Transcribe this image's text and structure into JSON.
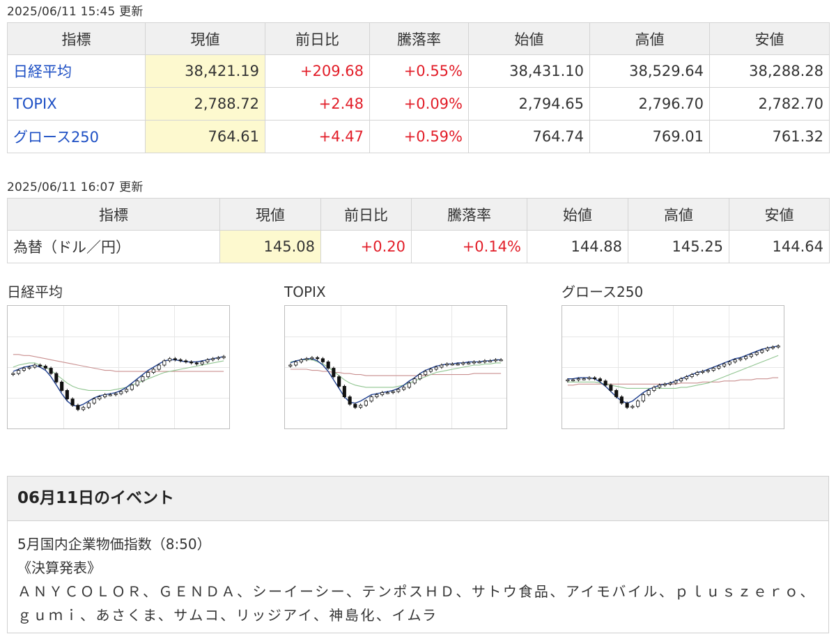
{
  "stock_table": {
    "updated": "2025/06/11 15:45 更新",
    "headers": [
      "指標",
      "現値",
      "前日比",
      "騰落率",
      "始値",
      "高値",
      "安値"
    ],
    "rows": [
      {
        "name": "日経平均",
        "current": "38,421.19",
        "change": "+209.68",
        "rate": "+0.55%",
        "open": "38,431.10",
        "high": "38,529.64",
        "low": "38,288.28"
      },
      {
        "name": "TOPIX",
        "current": "2,788.72",
        "change": "+2.48",
        "rate": "+0.09%",
        "open": "2,794.65",
        "high": "2,796.70",
        "low": "2,782.70"
      },
      {
        "name": "グロース250",
        "current": "764.61",
        "change": "+4.47",
        "rate": "+0.59%",
        "open": "764.74",
        "high": "769.01",
        "low": "761.32"
      }
    ]
  },
  "fx_table": {
    "updated": "2025/06/11 16:07 更新",
    "headers": [
      "指標",
      "現値",
      "前日比",
      "騰落率",
      "始値",
      "高値",
      "安値"
    ],
    "rows": [
      {
        "name": "為替（ドル／円）",
        "current": "145.08",
        "change": "+0.20",
        "rate": "+0.14%",
        "open": "144.88",
        "high": "145.25",
        "low": "144.64"
      }
    ]
  },
  "colors": {
    "positive": "#e21d28",
    "link": "#1d4fc4",
    "highlight": "#fdf9cf",
    "header_bg": "#f0f0f0",
    "ma_short": "#1f3f8f",
    "ma_mid": "#8fc48f",
    "ma_long": "#c98f8f"
  },
  "chart_data": [
    {
      "type": "candlestick",
      "title": "日経平均",
      "series": [
        {
          "values": [
            44,
            47,
            49,
            50,
            52,
            51,
            49,
            44,
            36,
            28,
            20,
            14,
            10,
            12,
            16,
            20,
            22,
            24,
            24,
            25,
            27,
            29,
            33,
            37,
            41,
            45,
            48,
            52,
            56,
            58,
            57,
            56,
            55,
            54,
            53,
            55,
            57,
            58,
            59,
            60
          ]
        },
        {
          "values": [
            46,
            48,
            50,
            51,
            52,
            50,
            47,
            41,
            33,
            25,
            18,
            14,
            13,
            15,
            18,
            21,
            23,
            24,
            25,
            26,
            28,
            31,
            35,
            39,
            43,
            47,
            50,
            53,
            56,
            57,
            57,
            56,
            55,
            55,
            55,
            56,
            57,
            58,
            59,
            60
          ]
        },
        {
          "values": [
            50,
            52,
            53,
            54,
            54,
            52,
            50,
            47,
            43,
            39,
            35,
            32,
            30,
            29,
            28,
            28,
            28,
            28,
            28,
            29,
            30,
            31,
            33,
            35,
            37,
            39,
            41,
            43,
            45,
            46,
            47,
            48,
            49,
            50,
            51,
            52,
            53,
            54,
            55,
            56
          ]
        },
        {
          "values": [
            62,
            62,
            61,
            61,
            60,
            59,
            58,
            57,
            56,
            55,
            54,
            53,
            52,
            51,
            50,
            49,
            48,
            47,
            47,
            46,
            46,
            46,
            46,
            46,
            46,
            46,
            46,
            46,
            46,
            46,
            46,
            46,
            46,
            46,
            46,
            46,
            46,
            46,
            46,
            46
          ]
        }
      ]
    },
    {
      "type": "candlestick",
      "title": "TOPIX",
      "series": [
        {
          "values": [
            52,
            55,
            57,
            58,
            59,
            58,
            55,
            49,
            41,
            32,
            22,
            15,
            12,
            14,
            18,
            22,
            24,
            26,
            26,
            27,
            29,
            31,
            35,
            39,
            43,
            46,
            48,
            50,
            52,
            53,
            53,
            53,
            54,
            54,
            55,
            55,
            56,
            56,
            57,
            57
          ]
        },
        {
          "values": [
            54,
            56,
            57,
            58,
            58,
            56,
            52,
            46,
            38,
            30,
            22,
            17,
            16,
            18,
            21,
            24,
            25,
            26,
            27,
            28,
            30,
            33,
            37,
            40,
            44,
            47,
            49,
            51,
            52,
            53,
            53,
            54,
            54,
            55,
            55,
            55,
            56,
            56,
            57,
            57
          ]
        },
        {
          "values": [
            55,
            56,
            57,
            57,
            57,
            55,
            53,
            50,
            46,
            42,
            38,
            35,
            33,
            32,
            31,
            31,
            31,
            31,
            31,
            31,
            32,
            33,
            35,
            37,
            39,
            41,
            43,
            45,
            46,
            47,
            48,
            49,
            50,
            51,
            52,
            52,
            53,
            53,
            54,
            54
          ]
        },
        {
          "values": [
            48,
            48,
            48,
            48,
            47,
            47,
            46,
            46,
            45,
            45,
            44,
            44,
            43,
            43,
            42,
            42,
            42,
            42,
            42,
            42,
            42,
            42,
            42,
            42,
            42,
            42,
            43,
            43,
            43,
            43,
            43,
            43,
            43,
            43,
            44,
            44,
            44,
            44,
            44,
            44
          ]
        }
      ]
    },
    {
      "type": "candlestick",
      "title": "グロース250",
      "series": [
        {
          "values": [
            38,
            38,
            39,
            39,
            40,
            39,
            37,
            33,
            28,
            22,
            16,
            12,
            13,
            18,
            24,
            28,
            31,
            33,
            34,
            35,
            37,
            39,
            41,
            43,
            45,
            46,
            47,
            49,
            51,
            53,
            55,
            57,
            58,
            60,
            62,
            64,
            66,
            68,
            69,
            70
          ]
        },
        {
          "values": [
            39,
            39,
            40,
            40,
            40,
            39,
            36,
            32,
            27,
            22,
            18,
            16,
            18,
            22,
            26,
            29,
            31,
            33,
            34,
            35,
            37,
            39,
            41,
            43,
            45,
            46,
            48,
            50,
            52,
            54,
            56,
            58,
            59,
            61,
            63,
            65,
            67,
            68,
            69,
            70
          ]
        },
        {
          "values": [
            36,
            36,
            36,
            36,
            36,
            36,
            35,
            34,
            33,
            32,
            31,
            30,
            30,
            30,
            30,
            30,
            30,
            30,
            30,
            30,
            30,
            31,
            31,
            32,
            33,
            34,
            35,
            37,
            39,
            41,
            43,
            45,
            47,
            49,
            51,
            53,
            55,
            57,
            59,
            61
          ]
        },
        {
          "values": [
            33,
            33,
            34,
            34,
            34,
            34,
            34,
            34,
            34,
            34,
            34,
            34,
            34,
            34,
            34,
            34,
            34,
            34,
            34,
            34,
            34,
            35,
            35,
            35,
            35,
            36,
            36,
            36,
            36,
            37,
            37,
            37,
            38,
            38,
            38,
            39,
            39,
            39,
            40,
            40
          ]
        }
      ]
    }
  ],
  "events": {
    "title": "06月11日のイベント",
    "lines": [
      "5月国内企業物価指数（8:50）",
      "《決算発表》"
    ],
    "companies": [
      "ＡＮＹＣＯＬＯＲ、ＧＥＮＤＡ、シーイーシー、テンポスＨＤ、サトウ食品、アイモバイル、ｐｌｕｓｚｅｒｏ、",
      "ｇｕｍｉ、あさくま、サムコ、リッジアイ、神島化、イムラ"
    ]
  }
}
